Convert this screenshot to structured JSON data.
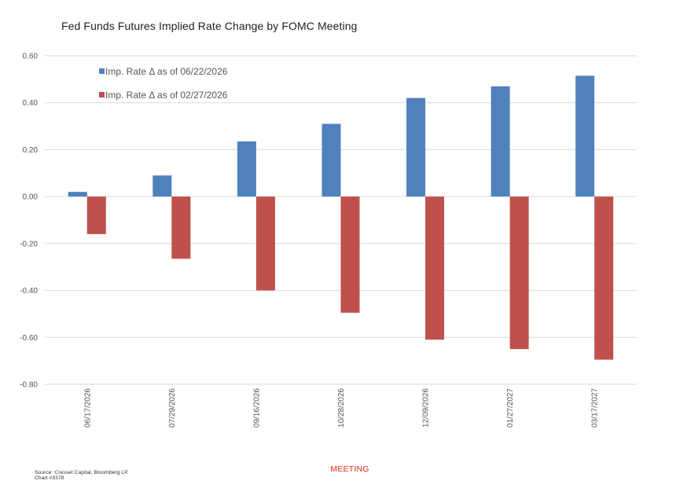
{
  "chart_data": {
    "type": "bar",
    "title": "Fed Funds Futures Implied Rate Change by FOMC Meeting",
    "xlabel": "MEETING",
    "ylabel": "",
    "ylim": [
      -0.8,
      0.6
    ],
    "yticks": [
      "0.60",
      "0.40",
      "0.20",
      "0.00",
      "-0.20",
      "-0.40",
      "-0.60",
      "-0.80"
    ],
    "grid": true,
    "legend_position": "top-left",
    "categories": [
      "06/17/2026",
      "07/29/2026",
      "09/16/2026",
      "10/28/2026",
      "12/09/2026",
      "01/27/2027",
      "03/17/2027"
    ],
    "series": [
      {
        "name": "Imp. Rate Δ as of 06/22/2026",
        "color": "#4f81bd",
        "values": [
          0.02,
          0.09,
          0.235,
          0.31,
          0.42,
          0.47,
          0.515
        ]
      },
      {
        "name": "Imp. Rate Δ as of 02/27/2026",
        "color": "#c0504d",
        "values": [
          -0.16,
          -0.265,
          -0.4,
          -0.495,
          -0.61,
          -0.65,
          -0.695
        ]
      }
    ]
  },
  "source": {
    "line1": "Source: Cresset Capital, Bloomberg LP.",
    "line2": "Chart #3378"
  }
}
